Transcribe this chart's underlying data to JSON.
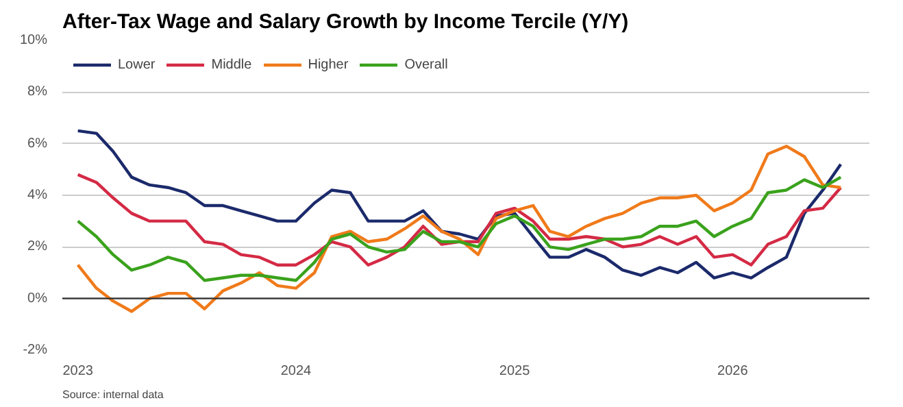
{
  "chart_data": {
    "type": "line",
    "title": "After-Tax Wage and Salary Growth by Income Tercile (Y/Y)",
    "x": [
      "2023-01",
      "2023-02",
      "2023-03",
      "2023-04",
      "2023-05",
      "2023-06",
      "2023-07",
      "2023-08",
      "2023-09",
      "2023-10",
      "2023-11",
      "2023-12",
      "2024-01",
      "2024-02",
      "2024-03",
      "2024-04",
      "2024-05",
      "2024-06",
      "2024-07",
      "2024-08",
      "2024-09",
      "2024-10",
      "2024-11",
      "2024-12",
      "2025-01",
      "2025-02",
      "2025-03",
      "2025-04",
      "2025-05",
      "2025-06",
      "2025-07",
      "2025-08",
      "2025-09",
      "2025-10",
      "2025-11",
      "2025-12",
      "2026-01",
      "2026-02",
      "2026-03",
      "2026-04",
      "2026-05",
      "2026-06",
      "2026-07"
    ],
    "series": [
      {
        "name": "Lower",
        "color": "#1b2a6b",
        "values": [
          6.5,
          6.4,
          5.7,
          4.7,
          4.4,
          4.3,
          4.1,
          3.6,
          3.6,
          3.4,
          3.2,
          3.0,
          3.0,
          3.7,
          4.2,
          4.1,
          3.0,
          3.0,
          3.0,
          3.4,
          2.6,
          2.5,
          2.3,
          3.2,
          3.3,
          2.4,
          1.6,
          1.6,
          1.9,
          1.6,
          1.1,
          0.9,
          1.2,
          1.0,
          1.4,
          0.8,
          1.0,
          0.8,
          1.2,
          1.6,
          3.3,
          4.2,
          5.2
        ]
      },
      {
        "name": "Middle",
        "color": "#d42a45",
        "values": [
          4.8,
          4.5,
          3.9,
          3.3,
          3.0,
          3.0,
          3.0,
          2.2,
          2.1,
          1.7,
          1.6,
          1.3,
          1.3,
          1.7,
          2.2,
          2.0,
          1.3,
          1.6,
          2.0,
          2.8,
          2.1,
          2.2,
          2.2,
          3.3,
          3.5,
          3.0,
          2.3,
          2.3,
          2.4,
          2.3,
          2.0,
          2.1,
          2.4,
          2.1,
          2.4,
          1.6,
          1.7,
          1.3,
          2.1,
          2.4,
          3.4,
          3.5,
          4.3
        ]
      },
      {
        "name": "Higher",
        "color": "#f07a1a",
        "values": [
          1.3,
          0.4,
          -0.1,
          -0.5,
          0.0,
          0.2,
          0.2,
          -0.4,
          0.3,
          0.6,
          1.0,
          0.5,
          0.4,
          1.0,
          2.4,
          2.6,
          2.2,
          2.3,
          2.7,
          3.2,
          2.6,
          2.3,
          1.7,
          3.1,
          3.4,
          3.6,
          2.6,
          2.4,
          2.8,
          3.1,
          3.3,
          3.7,
          3.9,
          3.9,
          4.0,
          3.4,
          3.7,
          4.2,
          5.6,
          5.9,
          5.5,
          4.4,
          4.3
        ]
      },
      {
        "name": "Overall",
        "color": "#3aa21c",
        "values": [
          3.0,
          2.4,
          1.7,
          1.1,
          1.3,
          1.6,
          1.4,
          0.7,
          0.8,
          0.9,
          0.9,
          0.8,
          0.7,
          1.4,
          2.3,
          2.5,
          2.0,
          1.8,
          1.9,
          2.6,
          2.2,
          2.2,
          2.0,
          2.9,
          3.2,
          2.8,
          2.0,
          1.9,
          2.1,
          2.3,
          2.3,
          2.4,
          2.8,
          2.8,
          3.0,
          2.4,
          2.8,
          3.1,
          4.1,
          4.2,
          4.6,
          4.3,
          4.7
        ]
      }
    ],
    "xlim": [
      "2022-12-06",
      "2026-08-18"
    ],
    "xticks": [
      "2023",
      "2024",
      "2025",
      "2026"
    ],
    "ylim": [
      -2,
      10
    ],
    "yticks": [
      {
        "value": -2,
        "label": "-2%"
      },
      {
        "value": 0,
        "label": "0%"
      },
      {
        "value": 2,
        "label": "2%"
      },
      {
        "value": 4,
        "label": "4%"
      },
      {
        "value": 6,
        "label": "6%"
      },
      {
        "value": 8,
        "label": "8%"
      },
      {
        "value": 10,
        "label": "10%"
      }
    ],
    "ref_lines": [
      {
        "axis": "y",
        "value": 0,
        "color": "#333333"
      }
    ],
    "grid": "y",
    "legend": "top left",
    "marker": "none",
    "line_style": "solid",
    "annotations": [
      "Source: internal data"
    ]
  }
}
